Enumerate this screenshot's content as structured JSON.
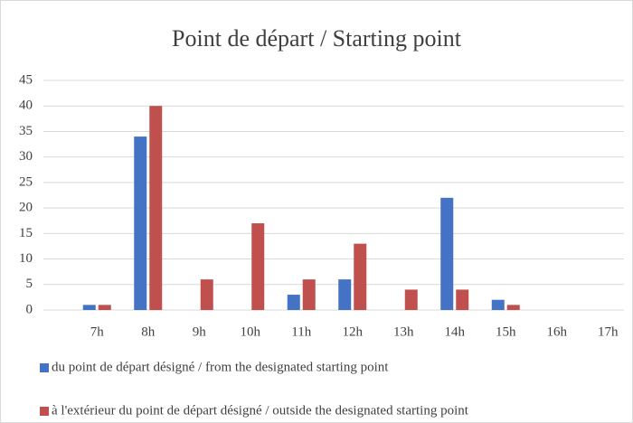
{
  "chart_data": {
    "type": "bar",
    "title": "Point de départ / Starting point",
    "categories": [
      "7h",
      "8h",
      "9h",
      "10h",
      "11h",
      "12h",
      "13h",
      "14h",
      "15h",
      "16h",
      "17h"
    ],
    "series": [
      {
        "name": "du point de départ désigné / from the designated starting point",
        "color": "#4472c4",
        "values": [
          1,
          34,
          0,
          0,
          3,
          6,
          0,
          22,
          2,
          0,
          0
        ]
      },
      {
        "name": "à l'extérieur du point de départ désigné / outside the designated starting point",
        "color": "#c0504d",
        "values": [
          1,
          40,
          6,
          17,
          6,
          13,
          4,
          4,
          1,
          0,
          0
        ]
      }
    ],
    "ylim": [
      0,
      45
    ],
    "yticks": [
      0,
      5,
      10,
      15,
      20,
      25,
      30,
      35,
      40,
      45
    ],
    "grid": true
  }
}
